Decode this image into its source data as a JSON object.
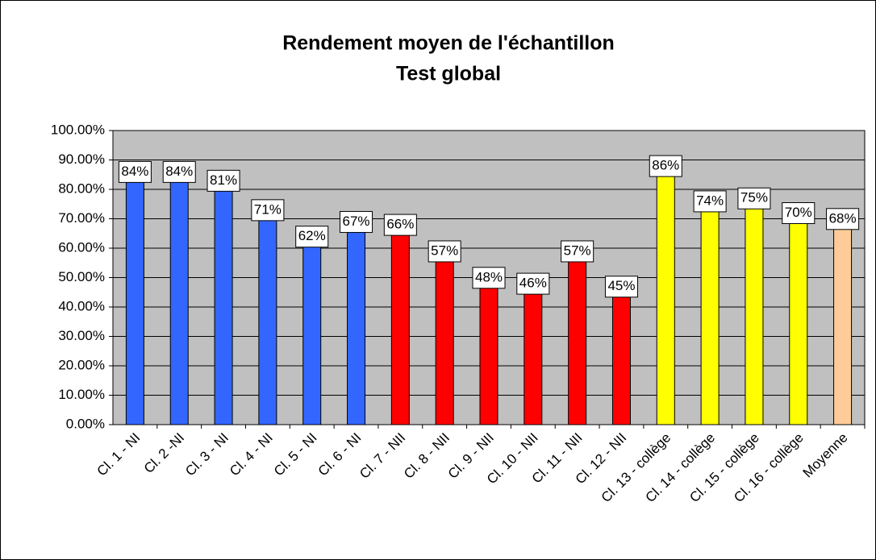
{
  "chart_data": {
    "type": "bar",
    "title": "Rendement moyen de l'échantillon",
    "subtitle": "Test global",
    "categories": [
      "Cl. 1 - NI",
      "Cl. 2 -NI",
      "Cl. 3 - NI",
      "Cl. 4 - NI",
      "Cl. 5 - NI",
      "Cl. 6 - NI",
      "Cl. 7 - NII",
      "Cl. 8 - NII",
      "Cl. 9 - NII",
      "Cl. 10 - NII",
      "Cl. 11 - NII",
      "Cl. 12 - NII",
      "Cl. 13 - collège",
      "Cl. 14 - collège",
      "Cl. 15 - collège",
      "Cl. 16 - collège",
      "Moyenne"
    ],
    "values": [
      84,
      84,
      81,
      71,
      62,
      67,
      66,
      57,
      48,
      46,
      57,
      45,
      86,
      74,
      75,
      70,
      68
    ],
    "value_labels": [
      "84%",
      "84%",
      "81%",
      "71%",
      "62%",
      "67%",
      "66%",
      "57%",
      "48%",
      "46%",
      "57%",
      "45%",
      "86%",
      "74%",
      "75%",
      "70%",
      "68%"
    ],
    "colors": [
      "#3366ff",
      "#3366ff",
      "#3366ff",
      "#3366ff",
      "#3366ff",
      "#3366ff",
      "#ff0000",
      "#ff0000",
      "#ff0000",
      "#ff0000",
      "#ff0000",
      "#ff0000",
      "#ffff00",
      "#ffff00",
      "#ffff00",
      "#ffff00",
      "#ffcc99"
    ],
    "ylim": [
      0,
      100
    ],
    "yticks": [
      {
        "value": 0,
        "label": "0.00%"
      },
      {
        "value": 10,
        "label": "10.00%"
      },
      {
        "value": 20,
        "label": "20.00%"
      },
      {
        "value": 30,
        "label": "30.00%"
      },
      {
        "value": 40,
        "label": "40.00%"
      },
      {
        "value": 50,
        "label": "50.00%"
      },
      {
        "value": 60,
        "label": "60.00%"
      },
      {
        "value": 70,
        "label": "70.00%"
      },
      {
        "value": 80,
        "label": "80.00%"
      },
      {
        "value": 90,
        "label": "90.00%"
      },
      {
        "value": 100,
        "label": "100.00%"
      }
    ],
    "grid": true
  }
}
